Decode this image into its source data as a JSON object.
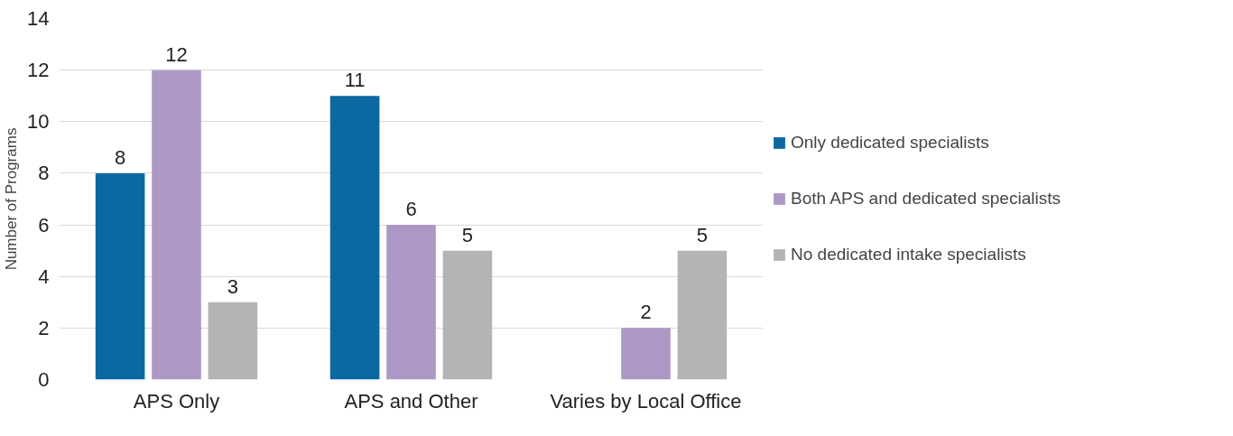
{
  "chart_data": {
    "type": "bar",
    "ylabel": "Number of Programs",
    "categories": [
      "APS Only",
      "APS and Other",
      "Varies by Local Office"
    ],
    "series": [
      {
        "name": "Only dedicated specialists",
        "color": "#0b68a0",
        "values": [
          8,
          11,
          null
        ]
      },
      {
        "name": "Both APS and dedicated specialists",
        "color": "#ad98c5",
        "values": [
          12,
          6,
          2
        ]
      },
      {
        "name": "No dedicated intake specialists",
        "color": "#b4b4b4",
        "values": [
          3,
          5,
          5
        ]
      }
    ],
    "ylim": [
      0,
      14
    ],
    "yticks": [
      0,
      2,
      4,
      6,
      8,
      10,
      12,
      14
    ],
    "grid": "y",
    "legend": "right",
    "data_labels": true
  }
}
